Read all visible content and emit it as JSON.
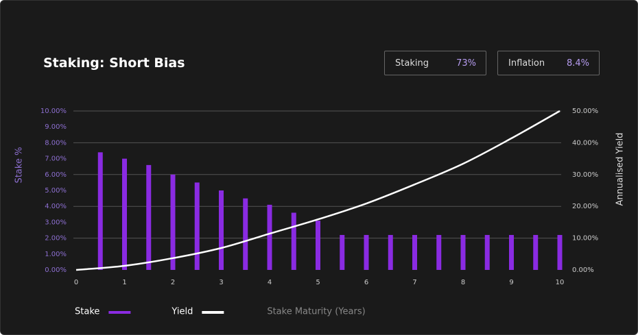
{
  "stats": [
    {
      "label": "Staking",
      "value": "73%"
    },
    {
      "label": "Inflation",
      "value": "8.4%"
    }
  ],
  "chart_data": {
    "type": "combo",
    "title": "Staking: Short Bias",
    "xlabel": "Stake Maturity (Years)",
    "ylabel": "Stake %",
    "y2label": "Annualised Yield",
    "xlim": [
      0,
      10
    ],
    "xticks": [
      0,
      1,
      2,
      3,
      4,
      5,
      6,
      7,
      8,
      9,
      10
    ],
    "ylim": [
      0,
      10
    ],
    "yticks": [
      {
        "value": 0,
        "label": "0.00%"
      },
      {
        "value": 1,
        "label": "1.00%"
      },
      {
        "value": 2,
        "label": "2.00%"
      },
      {
        "value": 3,
        "label": "3.00%"
      },
      {
        "value": 4,
        "label": "4.00%"
      },
      {
        "value": 5,
        "label": "5.00%"
      },
      {
        "value": 6,
        "label": "6.00%"
      },
      {
        "value": 7,
        "label": "7.00%"
      },
      {
        "value": 8,
        "label": "8.00%"
      },
      {
        "value": 9,
        "label": "9.00%"
      },
      {
        "value": 10,
        "label": "10.00%"
      }
    ],
    "y2lim": [
      0,
      50
    ],
    "y2ticks": [
      {
        "value": 0,
        "label": "0.00%"
      },
      {
        "value": 10,
        "label": "10.00%"
      },
      {
        "value": 20,
        "label": "20.00%"
      },
      {
        "value": 30,
        "label": "30.00%"
      },
      {
        "value": 40,
        "label": "40.00%"
      },
      {
        "value": 50,
        "label": "50.00%"
      }
    ],
    "grid": true,
    "series": [
      {
        "name": "Stake",
        "type": "bar",
        "color": "#8a2be2",
        "x": [
          0.5,
          1,
          1.5,
          2,
          2.5,
          3,
          3.5,
          4,
          4.5,
          5,
          5.5,
          6,
          6.5,
          7,
          7.5,
          8,
          8.5,
          9,
          9.5,
          10
        ],
        "values": [
          7.4,
          7.0,
          6.6,
          6.0,
          5.5,
          5.0,
          4.5,
          4.1,
          3.6,
          3.1,
          2.2,
          2.2,
          2.2,
          2.2,
          2.2,
          2.2,
          2.2,
          2.2,
          2.2,
          2.2
        ]
      },
      {
        "name": "Yield",
        "type": "line",
        "color": "#ffffff",
        "axis": "y2",
        "x": [
          0,
          1,
          2,
          3,
          4,
          5,
          6,
          7,
          8,
          9,
          10
        ],
        "values": [
          0,
          1.3,
          3.7,
          6.9,
          11.4,
          15.9,
          20.9,
          26.9,
          33.4,
          41.4,
          50
        ]
      }
    ]
  }
}
